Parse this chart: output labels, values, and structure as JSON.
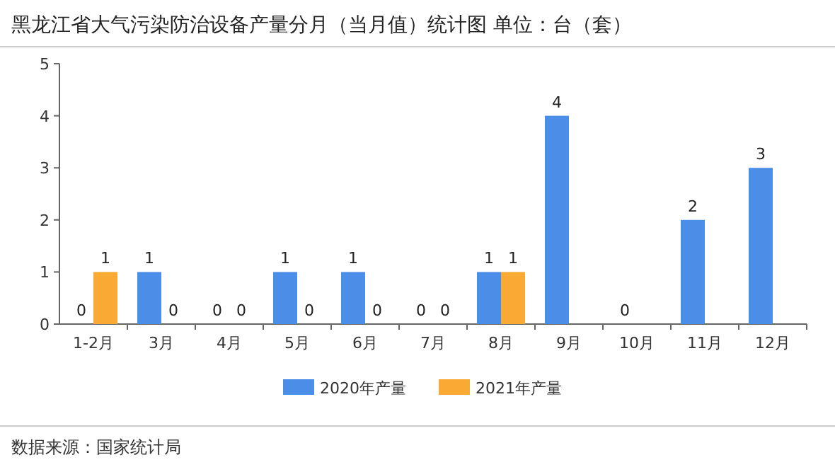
{
  "chart_data": {
    "type": "bar",
    "title": "黑龙江省大气污染防治设备产量分月（当月值）统计图 单位：台（套）",
    "categories": [
      "1-2月",
      "3月",
      "4月",
      "5月",
      "6月",
      "7月",
      "8月",
      "9月",
      "10月",
      "11月",
      "12月"
    ],
    "series": [
      {
        "name": "2020年产量",
        "color": "#4b8ee8",
        "values": [
          0,
          1,
          0,
          1,
          1,
          0,
          1,
          4,
          0,
          2,
          3
        ]
      },
      {
        "name": "2021年产量",
        "color": "#f8aa35",
        "values": [
          1,
          0,
          0,
          0,
          0,
          0,
          1,
          null,
          null,
          null,
          null
        ]
      }
    ],
    "ylim": [
      0,
      5
    ],
    "yticks": [
      0,
      1,
      2,
      3,
      4,
      5
    ],
    "data_labels": true,
    "legend": "bottom",
    "grid": false,
    "annotations": [
      "数据来源：国家统计局"
    ]
  }
}
